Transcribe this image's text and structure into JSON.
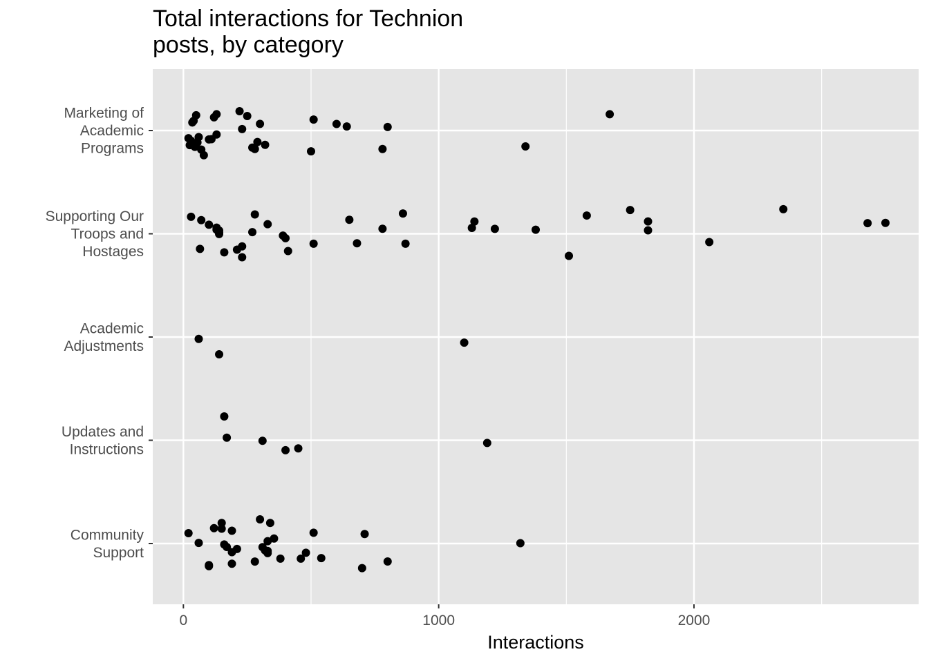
{
  "chart_data": {
    "type": "scatter",
    "title_lines": [
      "Total interactions for Technion",
      "posts, by category"
    ],
    "xlabel": "Interactions",
    "ylabel": "",
    "xlim": [
      -120,
      2880
    ],
    "x_ticks": [
      0,
      1000,
      2000
    ],
    "x_minor": [
      500,
      1500,
      2500
    ],
    "grid": true,
    "legend": "none",
    "colors": {
      "panel": "#e5e5e5",
      "grid": "#ffffff",
      "point": "#000000",
      "tick_text": "#4d4d4d"
    },
    "categories": [
      {
        "label_lines": [
          "Marketing of",
          "Academic",
          "Programs"
        ],
        "values": [
          20,
          40,
          60,
          80,
          100,
          110,
          130,
          70,
          30,
          45,
          55,
          35,
          25,
          50,
          130,
          120,
          250,
          320,
          280,
          270,
          220,
          230,
          290,
          300,
          510,
          600,
          500,
          780,
          640,
          800,
          1340,
          1670
        ]
      },
      {
        "label_lines": [
          "Supporting Our",
          "Troops and",
          "Hostages"
        ],
        "values": [
          30,
          100,
          130,
          140,
          230,
          270,
          230,
          70,
          140,
          160,
          210,
          330,
          390,
          410,
          510,
          280,
          400,
          860,
          680,
          780,
          870,
          1140,
          1130,
          1220,
          1380,
          1510,
          1820,
          1750,
          1820,
          1580,
          2060,
          2350,
          2680,
          2750,
          130,
          650,
          65,
          140
        ]
      },
      {
        "label_lines": [
          "Academic",
          "Adjustments"
        ],
        "values": [
          60,
          140,
          1100
        ]
      },
      {
        "label_lines": [
          "Updates and",
          "Instructions"
        ],
        "values": [
          400,
          160,
          1190,
          170,
          310,
          450
        ]
      },
      {
        "label_lines": [
          "Community",
          "Support"
        ],
        "values": [
          20,
          60,
          100,
          150,
          160,
          190,
          210,
          300,
          320,
          330,
          355,
          460,
          480,
          510,
          540,
          700,
          1320,
          120,
          170,
          190,
          280,
          310,
          330,
          340,
          100,
          150,
          190,
          330,
          380,
          710,
          800
        ]
      }
    ]
  }
}
